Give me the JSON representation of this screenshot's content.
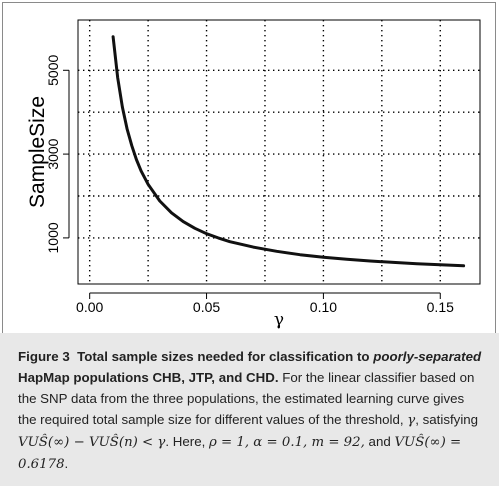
{
  "chart_data": {
    "type": "line",
    "xlabel": "γ",
    "ylabel": "SampleSize",
    "xlim": [
      -0.005,
      0.167
    ],
    "ylim": [
      -100,
      6200
    ],
    "x_ticks": [
      0.0,
      0.05,
      0.1,
      0.15
    ],
    "x_tick_labels": [
      "0.00",
      "0.05",
      "0.10",
      "0.15"
    ],
    "y_ticks": [
      1000,
      3000,
      5000
    ],
    "y_tick_labels": [
      "1000",
      "3000",
      "5000"
    ],
    "grid": true,
    "grid_style": "dotted",
    "series": [
      {
        "x": [
          0.01,
          0.012,
          0.014,
          0.016,
          0.018,
          0.02,
          0.022,
          0.025,
          0.03,
          0.035,
          0.04,
          0.045,
          0.05,
          0.055,
          0.06,
          0.07,
          0.08,
          0.09,
          0.1,
          0.11,
          0.12,
          0.13,
          0.14,
          0.15,
          0.16
        ],
        "y": [
          5800,
          4820,
          4120,
          3600,
          3200,
          2870,
          2600,
          2280,
          1880,
          1600,
          1390,
          1230,
          1100,
          1000,
          910,
          780,
          680,
          600,
          540,
          490,
          450,
          415,
          385,
          360,
          335
        ],
        "color": "#111111"
      }
    ]
  },
  "caption": {
    "figure_label": "Figure 3",
    "title_part1": "Total sample sizes needed for classification to",
    "title_italic": "poorly-separated",
    "title_part2": "HapMap populations CHB, JTP, and CHD.",
    "body_1": "For the linear classifier based on the SNP data from the three populations, the estimated learning curve gives the required total sample size for different values of the threshold,",
    "gamma": "γ",
    "body_2": ", satisfying",
    "vus_inf": "VUŜ(∞) − VUŜ(n) < γ",
    "body_3": ". Here,",
    "params": "ρ = 1, α = 0.1, m = 92,",
    "body_4": "and",
    "vus_val": "VUŜ(∞) = 0.6178",
    "body_5": "."
  }
}
